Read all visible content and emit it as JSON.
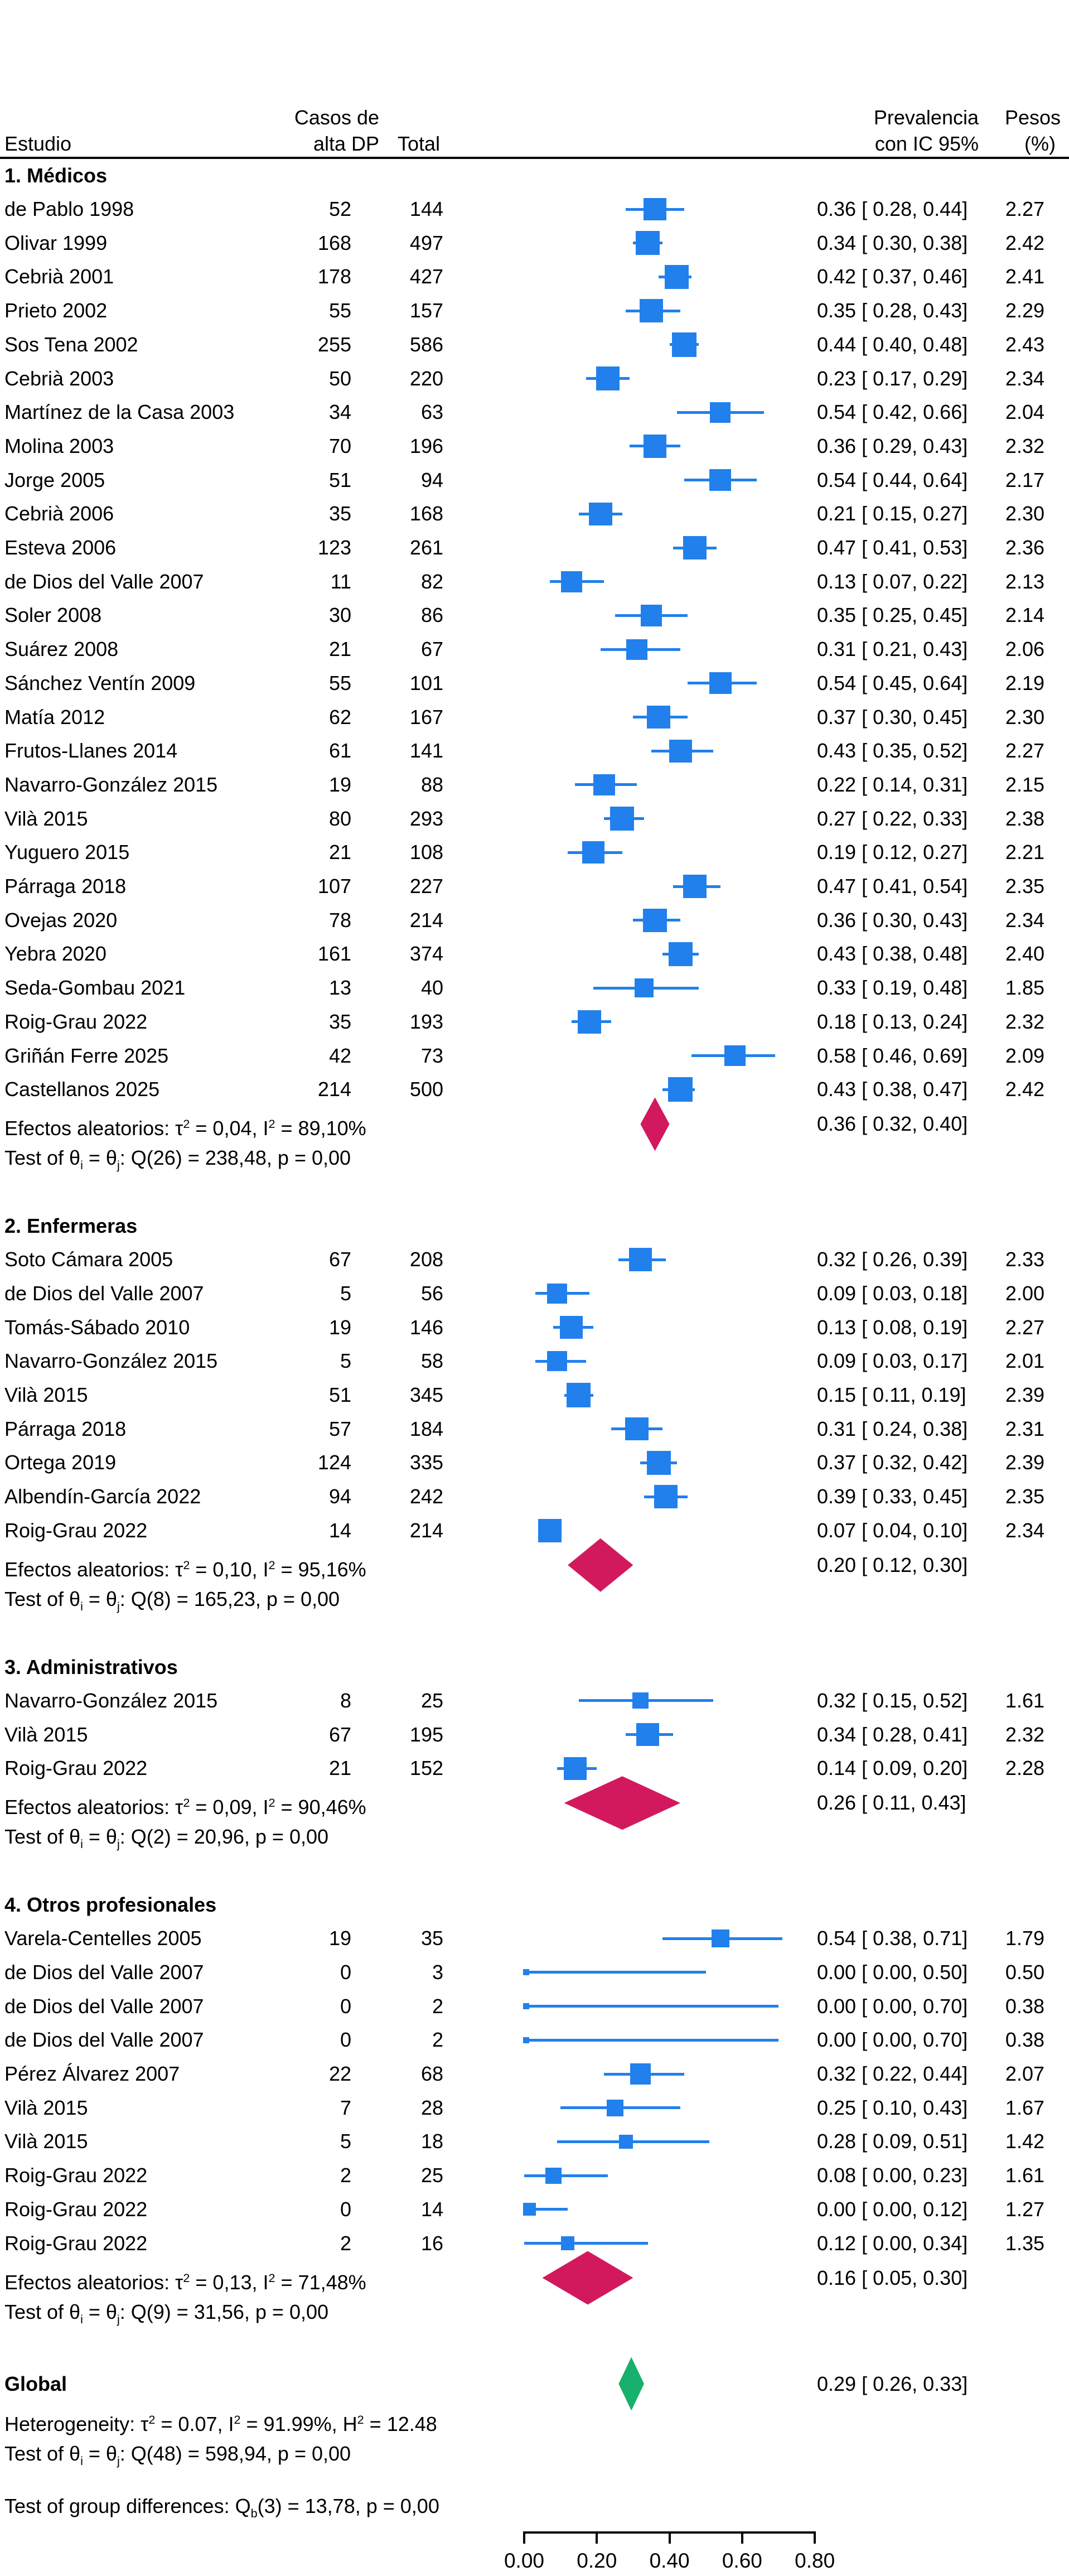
{
  "header": {
    "estudio": "Estudio",
    "casos_line1": "Casos de",
    "casos_line2": "alta DP",
    "total": "Total",
    "prevalencia_line1": "Prevalencia",
    "prevalencia_line2": "con IC 95%",
    "pesos_line1": "Pesos",
    "pesos_line2": "(%)"
  },
  "colors": {
    "study_marker": "#2180EC",
    "group_diamond": "#D2195E",
    "global_diamond": "#17B06C",
    "text": "#000000",
    "rule": "#000000"
  },
  "axis": {
    "tick_labels": [
      "0.00",
      "0.20",
      "0.40",
      "0.60",
      "0.80"
    ],
    "tick_values": [
      0,
      0.2,
      0.4,
      0.6,
      0.8
    ]
  },
  "chart_data": {
    "type": "scatter",
    "variant": "forest-plot",
    "grid": false,
    "xlim": [
      0,
      0.8
    ],
    "x_tick_labels": [
      "0.00",
      "0.20",
      "0.40",
      "0.60",
      "0.80"
    ],
    "x_tick_values": [
      0,
      0.2,
      0.4,
      0.6,
      0.8
    ],
    "legend": "none",
    "groups": [
      {
        "title": "1. Médicos",
        "studies": [
          {
            "label": "de Pablo 1998",
            "cases": "52",
            "total": "144",
            "est": 0.36,
            "lo": 0.28,
            "hi": 0.44,
            "ci": "0.36 [ 0.28, 0.44]",
            "weight": "2.27"
          },
          {
            "label": "Olivar 1999",
            "cases": "168",
            "total": "497",
            "est": 0.34,
            "lo": 0.3,
            "hi": 0.38,
            "ci": "0.34 [ 0.30, 0.38]",
            "weight": "2.42"
          },
          {
            "label": "Cebrià 2001",
            "cases": "178",
            "total": "427",
            "est": 0.42,
            "lo": 0.37,
            "hi": 0.46,
            "ci": "0.42 [ 0.37, 0.46]",
            "weight": "2.41"
          },
          {
            "label": "Prieto 2002",
            "cases": "55",
            "total": "157",
            "est": 0.35,
            "lo": 0.28,
            "hi": 0.43,
            "ci": "0.35 [ 0.28, 0.43]",
            "weight": "2.29"
          },
          {
            "label": "Sos Tena 2002",
            "cases": "255",
            "total": "586",
            "est": 0.44,
            "lo": 0.4,
            "hi": 0.48,
            "ci": "0.44 [ 0.40, 0.48]",
            "weight": "2.43"
          },
          {
            "label": "Cebrià 2003",
            "cases": "50",
            "total": "220",
            "est": 0.23,
            "lo": 0.17,
            "hi": 0.29,
            "ci": "0.23 [ 0.17, 0.29]",
            "weight": "2.34"
          },
          {
            "label": "Martínez de la Casa 2003",
            "cases": "34",
            "total": "63",
            "est": 0.54,
            "lo": 0.42,
            "hi": 0.66,
            "ci": "0.54 [ 0.42, 0.66]",
            "weight": "2.04"
          },
          {
            "label": "Molina 2003",
            "cases": "70",
            "total": "196",
            "est": 0.36,
            "lo": 0.29,
            "hi": 0.43,
            "ci": "0.36 [ 0.29, 0.43]",
            "weight": "2.32"
          },
          {
            "label": "Jorge 2005",
            "cases": "51",
            "total": "94",
            "est": 0.54,
            "lo": 0.44,
            "hi": 0.64,
            "ci": "0.54 [ 0.44, 0.64]",
            "weight": "2.17"
          },
          {
            "label": "Cebrià 2006",
            "cases": "35",
            "total": "168",
            "est": 0.21,
            "lo": 0.15,
            "hi": 0.27,
            "ci": "0.21 [ 0.15, 0.27]",
            "weight": "2.30"
          },
          {
            "label": "Esteva 2006",
            "cases": "123",
            "total": "261",
            "est": 0.47,
            "lo": 0.41,
            "hi": 0.53,
            "ci": "0.47 [ 0.41, 0.53]",
            "weight": "2.36"
          },
          {
            "label": "de Dios del Valle 2007",
            "cases": "11",
            "total": "82",
            "est": 0.13,
            "lo": 0.07,
            "hi": 0.22,
            "ci": "0.13 [ 0.07, 0.22]",
            "weight": "2.13"
          },
          {
            "label": "Soler 2008",
            "cases": "30",
            "total": "86",
            "est": 0.35,
            "lo": 0.25,
            "hi": 0.45,
            "ci": "0.35 [ 0.25, 0.45]",
            "weight": "2.14"
          },
          {
            "label": "Suárez 2008",
            "cases": "21",
            "total": "67",
            "est": 0.31,
            "lo": 0.21,
            "hi": 0.43,
            "ci": "0.31 [ 0.21, 0.43]",
            "weight": "2.06"
          },
          {
            "label": "Sánchez Ventín 2009",
            "cases": "55",
            "total": "101",
            "est": 0.54,
            "lo": 0.45,
            "hi": 0.64,
            "ci": "0.54 [ 0.45, 0.64]",
            "weight": "2.19"
          },
          {
            "label": "Matía 2012",
            "cases": "62",
            "total": "167",
            "est": 0.37,
            "lo": 0.3,
            "hi": 0.45,
            "ci": "0.37 [ 0.30, 0.45]",
            "weight": "2.30"
          },
          {
            "label": "Frutos-Llanes 2014",
            "cases": "61",
            "total": "141",
            "est": 0.43,
            "lo": 0.35,
            "hi": 0.52,
            "ci": "0.43 [ 0.35, 0.52]",
            "weight": "2.27"
          },
          {
            "label": "Navarro-González 2015",
            "cases": "19",
            "total": "88",
            "est": 0.22,
            "lo": 0.14,
            "hi": 0.31,
            "ci": "0.22 [ 0.14, 0.31]",
            "weight": "2.15"
          },
          {
            "label": "Vilà 2015",
            "cases": "80",
            "total": "293",
            "est": 0.27,
            "lo": 0.22,
            "hi": 0.33,
            "ci": "0.27 [ 0.22, 0.33]",
            "weight": "2.38"
          },
          {
            "label": "Yuguero 2015",
            "cases": "21",
            "total": "108",
            "est": 0.19,
            "lo": 0.12,
            "hi": 0.27,
            "ci": "0.19 [ 0.12, 0.27]",
            "weight": "2.21"
          },
          {
            "label": "Párraga 2018",
            "cases": "107",
            "total": "227",
            "est": 0.47,
            "lo": 0.41,
            "hi": 0.54,
            "ci": "0.47 [ 0.41, 0.54]",
            "weight": "2.35"
          },
          {
            "label": "Ovejas 2020",
            "cases": "78",
            "total": "214",
            "est": 0.36,
            "lo": 0.3,
            "hi": 0.43,
            "ci": "0.36 [ 0.30, 0.43]",
            "weight": "2.34"
          },
          {
            "label": "Yebra 2020",
            "cases": "161",
            "total": "374",
            "est": 0.43,
            "lo": 0.38,
            "hi": 0.48,
            "ci": "0.43 [ 0.38, 0.48]",
            "weight": "2.40"
          },
          {
            "label": "Seda-Gombau 2021",
            "cases": "13",
            "total": "40",
            "est": 0.33,
            "lo": 0.19,
            "hi": 0.48,
            "ci": "0.33 [ 0.19, 0.48]",
            "weight": "1.85"
          },
          {
            "label": "Roig-Grau 2022",
            "cases": "35",
            "total": "193",
            "est": 0.18,
            "lo": 0.13,
            "hi": 0.24,
            "ci": "0.18 [ 0.13, 0.24]",
            "weight": "2.32"
          },
          {
            "label": "Griñán Ferre 2025",
            "cases": "42",
            "total": "73",
            "est": 0.58,
            "lo": 0.46,
            "hi": 0.69,
            "ci": "0.58 [ 0.46, 0.69]",
            "weight": "2.09"
          },
          {
            "label": "Castellanos 2025",
            "cases": "214",
            "total": "500",
            "est": 0.43,
            "lo": 0.38,
            "hi": 0.47,
            "ci": "0.43 [ 0.38, 0.47]",
            "weight": "2.42"
          }
        ],
        "summary": {
          "label": "Efectos aleatorios: τ^2 = 0,04, I^2 = 89,10%",
          "est": 0.36,
          "lo": 0.32,
          "hi": 0.4,
          "ci": "0.36 [ 0.32, 0.40]"
        },
        "test": "Test of θ_i = θ_j: Q(26) = 238,48, p = 0,00"
      },
      {
        "title": "2. Enfermeras",
        "studies": [
          {
            "label": "Soto Cámara 2005",
            "cases": "67",
            "total": "208",
            "est": 0.32,
            "lo": 0.26,
            "hi": 0.39,
            "ci": "0.32 [ 0.26, 0.39]",
            "weight": "2.33"
          },
          {
            "label": "de Dios del Valle 2007",
            "cases": "5",
            "total": "56",
            "est": 0.09,
            "lo": 0.03,
            "hi": 0.18,
            "ci": "0.09 [ 0.03, 0.18]",
            "weight": "2.00"
          },
          {
            "label": "Tomás-Sábado 2010",
            "cases": "19",
            "total": "146",
            "est": 0.13,
            "lo": 0.08,
            "hi": 0.19,
            "ci": "0.13 [ 0.08, 0.19]",
            "weight": "2.27"
          },
          {
            "label": "Navarro-González 2015",
            "cases": "5",
            "total": "58",
            "est": 0.09,
            "lo": 0.03,
            "hi": 0.17,
            "ci": "0.09 [ 0.03, 0.17]",
            "weight": "2.01"
          },
          {
            "label": "Vilà 2015",
            "cases": "51",
            "total": "345",
            "est": 0.15,
            "lo": 0.11,
            "hi": 0.19,
            "ci": "0.15 [ 0.11, 0.19]",
            "weight": "2.39"
          },
          {
            "label": "Párraga 2018",
            "cases": "57",
            "total": "184",
            "est": 0.31,
            "lo": 0.24,
            "hi": 0.38,
            "ci": "0.31 [ 0.24, 0.38]",
            "weight": "2.31"
          },
          {
            "label": "Ortega 2019",
            "cases": "124",
            "total": "335",
            "est": 0.37,
            "lo": 0.32,
            "hi": 0.42,
            "ci": "0.37 [ 0.32, 0.42]",
            "weight": "2.39"
          },
          {
            "label": "Albendín-García 2022",
            "cases": "94",
            "total": "242",
            "est": 0.39,
            "lo": 0.33,
            "hi": 0.45,
            "ci": "0.39 [ 0.33, 0.45]",
            "weight": "2.35"
          },
          {
            "label": "Roig-Grau 2022",
            "cases": "14",
            "total": "214",
            "est": 0.07,
            "lo": 0.04,
            "hi": 0.1,
            "ci": "0.07 [ 0.04, 0.10]",
            "weight": "2.34"
          }
        ],
        "summary": {
          "label": "Efectos aleatorios: τ^2 = 0,10, I^2 = 95,16%",
          "est": 0.2,
          "lo": 0.12,
          "hi": 0.3,
          "ci": "0.20 [ 0.12, 0.30]"
        },
        "test": "Test of θ_i = θ_j: Q(8) = 165,23, p = 0,00"
      },
      {
        "title": "3. Administrativos",
        "studies": [
          {
            "label": "Navarro-González 2015",
            "cases": "8",
            "total": "25",
            "est": 0.32,
            "lo": 0.15,
            "hi": 0.52,
            "ci": "0.32 [ 0.15, 0.52]",
            "weight": "1.61"
          },
          {
            "label": "Vilà 2015",
            "cases": "67",
            "total": "195",
            "est": 0.34,
            "lo": 0.28,
            "hi": 0.41,
            "ci": "0.34 [ 0.28, 0.41]",
            "weight": "2.32"
          },
          {
            "label": "Roig-Grau 2022",
            "cases": "21",
            "total": "152",
            "est": 0.14,
            "lo": 0.09,
            "hi": 0.2,
            "ci": "0.14 [ 0.09, 0.20]",
            "weight": "2.28"
          }
        ],
        "summary": {
          "label": "Efectos aleatorios: τ^2 = 0,09, I^2 = 90,46%",
          "est": 0.26,
          "lo": 0.11,
          "hi": 0.43,
          "ci": "0.26 [ 0.11, 0.43]"
        },
        "test": "Test of θ_i = θ_j: Q(2) = 20,96, p = 0,00"
      },
      {
        "title": "4. Otros profesionales",
        "studies": [
          {
            "label": "Varela-Centelles 2005",
            "cases": "19",
            "total": "35",
            "est": 0.54,
            "lo": 0.38,
            "hi": 0.71,
            "ci": "0.54 [ 0.38, 0.71]",
            "weight": "1.79"
          },
          {
            "label": "de Dios del Valle 2007",
            "cases": "0",
            "total": "3",
            "est": 0.0,
            "lo": 0.0,
            "hi": 0.5,
            "ci": "0.00 [ 0.00, 0.50]",
            "weight": "0.50"
          },
          {
            "label": "de Dios del Valle 2007",
            "cases": "0",
            "total": "2",
            "est": 0.0,
            "lo": 0.0,
            "hi": 0.7,
            "ci": "0.00 [ 0.00, 0.70]",
            "weight": "0.38"
          },
          {
            "label": "de Dios del Valle 2007",
            "cases": "0",
            "total": "2",
            "est": 0.0,
            "lo": 0.0,
            "hi": 0.7,
            "ci": "0.00 [ 0.00, 0.70]",
            "weight": "0.38"
          },
          {
            "label": "Pérez Álvarez 2007",
            "cases": "22",
            "total": "68",
            "est": 0.32,
            "lo": 0.22,
            "hi": 0.44,
            "ci": "0.32 [ 0.22, 0.44]",
            "weight": "2.07"
          },
          {
            "label": "Vilà 2015",
            "cases": "7",
            "total": "28",
            "est": 0.25,
            "lo": 0.1,
            "hi": 0.43,
            "ci": "0.25 [ 0.10, 0.43]",
            "weight": "1.67"
          },
          {
            "label": "Vilà 2015",
            "cases": "5",
            "total": "18",
            "est": 0.28,
            "lo": 0.09,
            "hi": 0.51,
            "ci": "0.28 [ 0.09, 0.51]",
            "weight": "1.42"
          },
          {
            "label": "Roig-Grau 2022",
            "cases": "2",
            "total": "25",
            "est": 0.08,
            "lo": 0.0,
            "hi": 0.23,
            "ci": "0.08 [ 0.00, 0.23]",
            "weight": "1.61"
          },
          {
            "label": "Roig-Grau 2022",
            "cases": "0",
            "total": "14",
            "est": 0.0,
            "lo": 0.0,
            "hi": 0.12,
            "ci": "0.00 [ 0.00, 0.12]",
            "weight": "1.27"
          },
          {
            "label": "Roig-Grau 2022",
            "cases": "2",
            "total": "16",
            "est": 0.12,
            "lo": 0.0,
            "hi": 0.34,
            "ci": "0.12 [ 0.00, 0.34]",
            "weight": "1.35"
          }
        ],
        "summary": {
          "label": "Efectos aleatorios: τ^2 = 0,13, I^2 = 71,48%",
          "est": 0.16,
          "lo": 0.05,
          "hi": 0.3,
          "ci": "0.16 [ 0.05, 0.30]"
        },
        "test": "Test of θ_i = θ_j: Q(9) = 31,56, p = 0,00"
      }
    ],
    "global": {
      "label": "Global",
      "est": 0.29,
      "lo": 0.26,
      "hi": 0.33,
      "ci": "0.29 [ 0.26, 0.33]",
      "heterogeneity": "Heterogeneity: τ^2 = 0.07, I^2 = 91.99%, H^2 = 12.48",
      "test": "Test of θ_i = θ_j: Q(48) = 598,94, p = 0,00",
      "group_differences": "Test of group differences: Q_b(3) = 13,78, p = 0,00"
    }
  }
}
